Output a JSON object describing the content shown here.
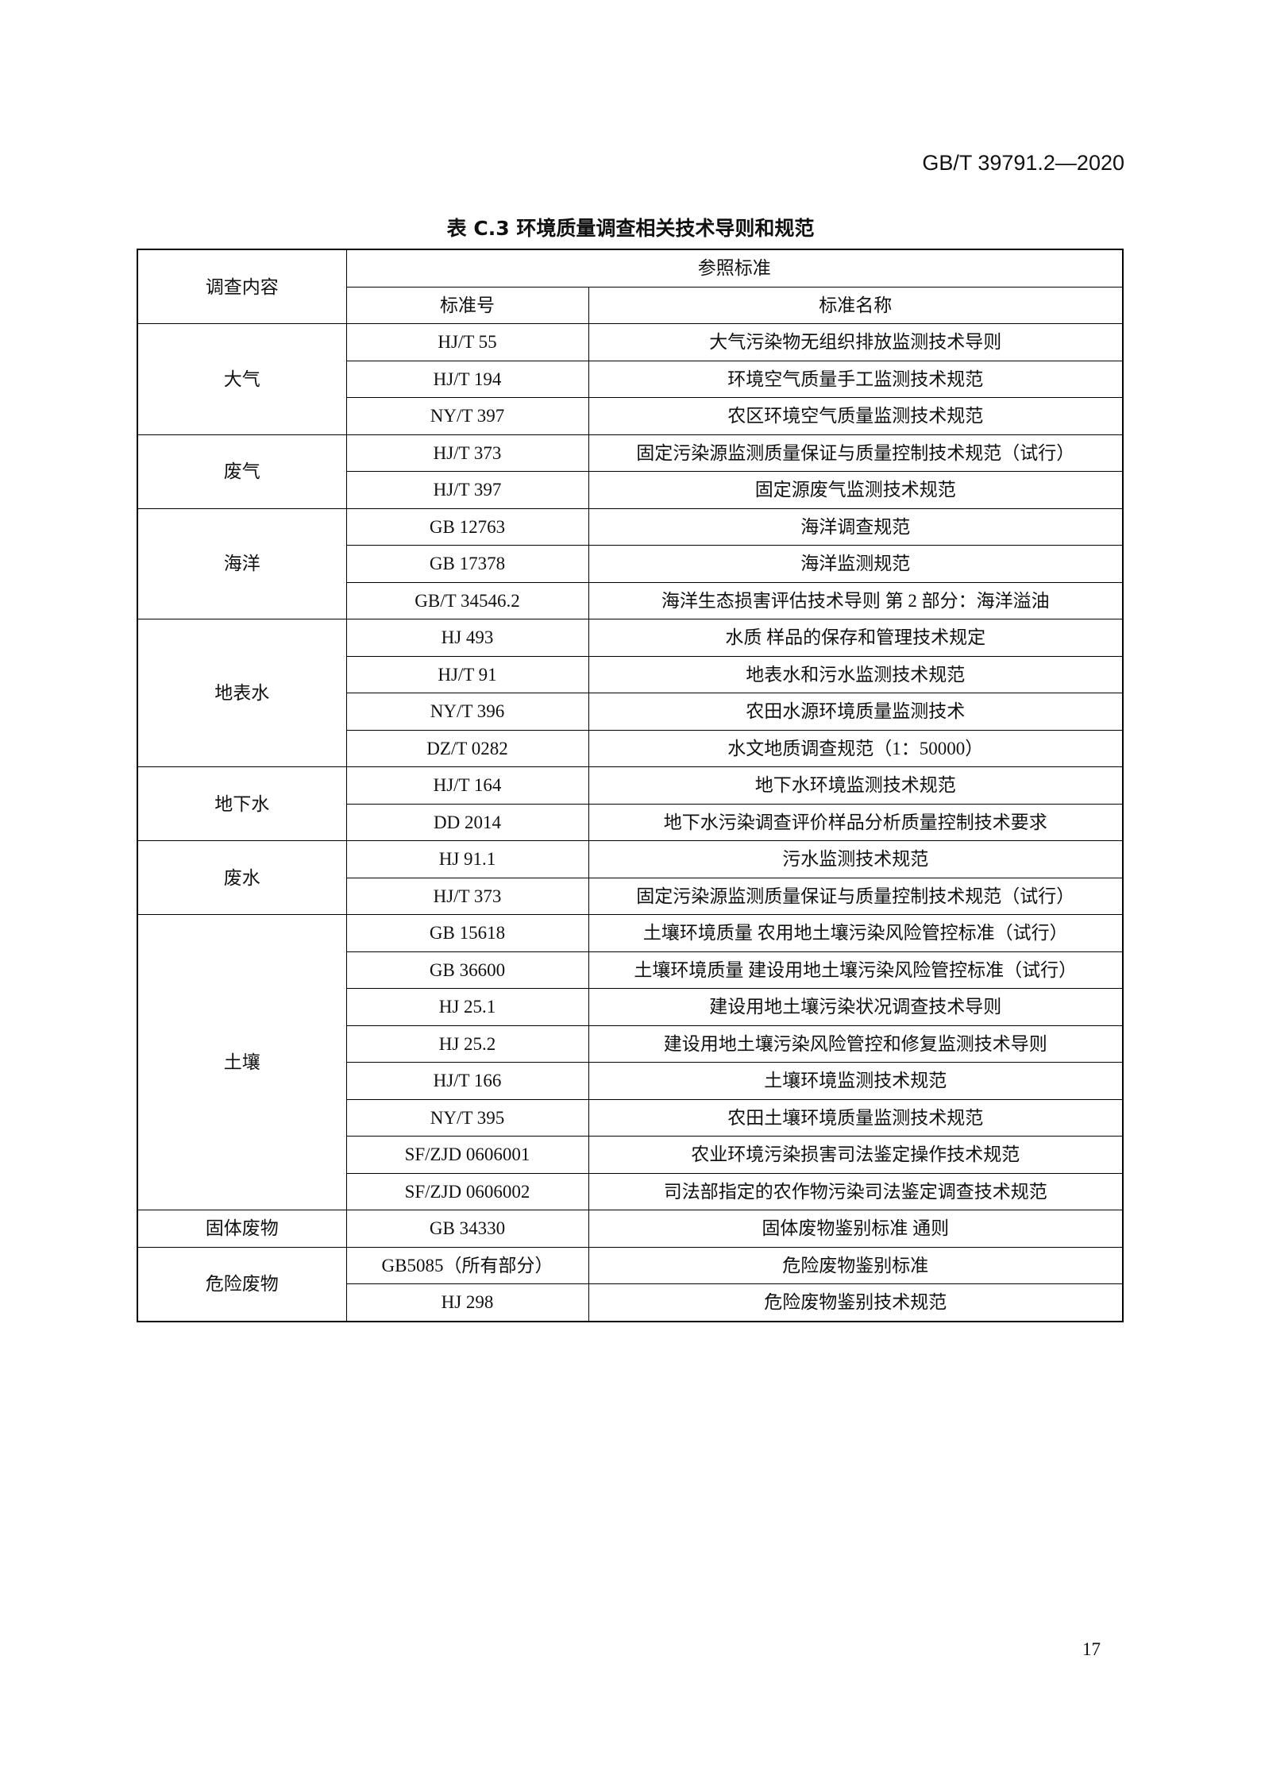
{
  "header": {
    "doc_id": "GB/T 39791.2—2020"
  },
  "caption": "表 C.3  环境质量调查相关技术导则和规范",
  "table": {
    "col_survey": "调查内容",
    "col_reference": "参照标准",
    "col_code": "标准号",
    "col_name": "标准名称",
    "groups": [
      {
        "category": "大气",
        "rows": [
          [
            "HJ/T 55",
            "大气污染物无组织排放监测技术导则"
          ],
          [
            "HJ/T 194",
            "环境空气质量手工监测技术规范"
          ],
          [
            "NY/T 397",
            "农区环境空气质量监测技术规范"
          ]
        ]
      },
      {
        "category": "废气",
        "rows": [
          [
            "HJ/T 373",
            "固定污染源监测质量保证与质量控制技术规范（试行）"
          ],
          [
            "HJ/T 397",
            "固定源废气监测技术规范"
          ]
        ]
      },
      {
        "category": "海洋",
        "rows": [
          [
            "GB 12763",
            "海洋调查规范"
          ],
          [
            "GB 17378",
            "海洋监测规范"
          ],
          [
            "GB/T 34546.2",
            "海洋生态损害评估技术导则  第 2 部分：海洋溢油"
          ]
        ]
      },
      {
        "category": "地表水",
        "rows": [
          [
            "HJ 493",
            "水质  样品的保存和管理技术规定"
          ],
          [
            "HJ/T 91",
            "地表水和污水监测技术规范"
          ],
          [
            "NY/T 396",
            "农田水源环境质量监测技术"
          ],
          [
            "DZ/T 0282",
            "水文地质调查规范（1：50000）"
          ]
        ]
      },
      {
        "category": "地下水",
        "rows": [
          [
            "HJ/T 164",
            "地下水环境监测技术规范"
          ],
          [
            "DD 2014",
            "地下水污染调查评价样品分析质量控制技术要求"
          ]
        ]
      },
      {
        "category": "废水",
        "rows": [
          [
            "HJ 91.1",
            "污水监测技术规范"
          ],
          [
            "HJ/T 373",
            "固定污染源监测质量保证与质量控制技术规范（试行）"
          ]
        ]
      },
      {
        "category": "土壤",
        "rows": [
          [
            "GB 15618",
            "土壤环境质量  农用地土壤污染风险管控标准（试行）"
          ],
          [
            "GB 36600",
            "土壤环境质量  建设用地土壤污染风险管控标准（试行）"
          ],
          [
            "HJ 25.1",
            "建设用地土壤污染状况调查技术导则"
          ],
          [
            "HJ 25.2",
            "建设用地土壤污染风险管控和修复监测技术导则"
          ],
          [
            "HJ/T 166",
            "土壤环境监测技术规范"
          ],
          [
            "NY/T 395",
            "农田土壤环境质量监测技术规范"
          ],
          [
            "SF/ZJD 0606001",
            "农业环境污染损害司法鉴定操作技术规范"
          ],
          [
            "SF/ZJD 0606002",
            "司法部指定的农作物污染司法鉴定调查技术规范"
          ]
        ]
      },
      {
        "category": "固体废物",
        "rows": [
          [
            "GB 34330",
            "固体废物鉴别标准  通则"
          ]
        ]
      },
      {
        "category": "危险废物",
        "rows": [
          [
            "GB5085（所有部分）",
            "危险废物鉴别标准"
          ],
          [
            "HJ 298",
            "危险废物鉴别技术规范"
          ]
        ]
      }
    ]
  },
  "page_number": "17"
}
